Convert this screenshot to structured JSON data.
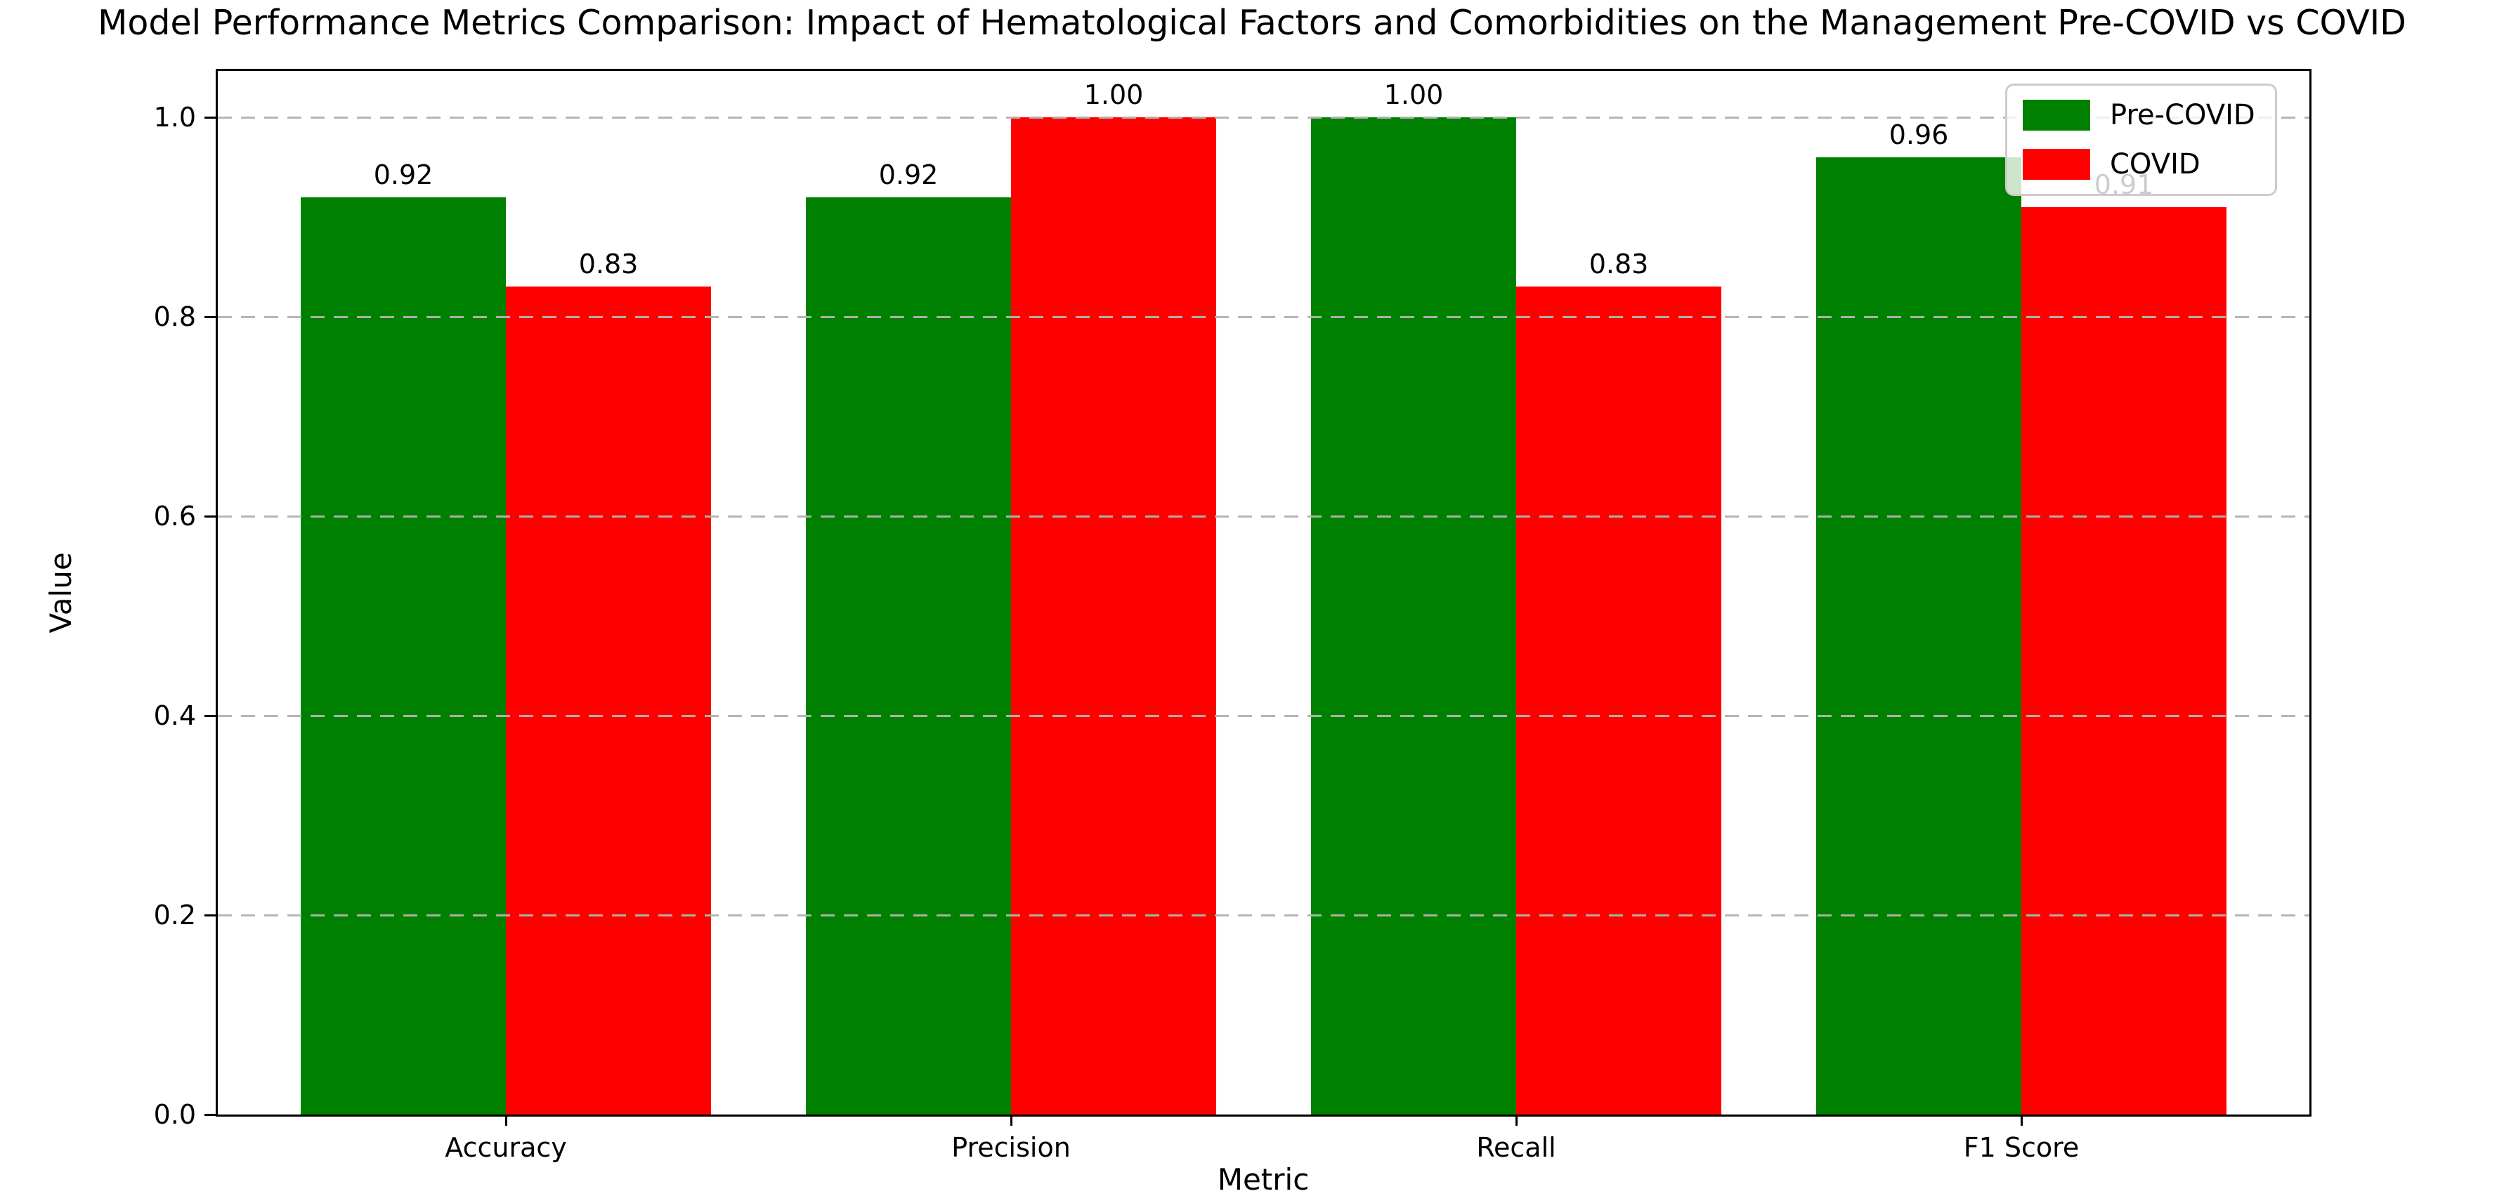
{
  "figure": {
    "title": "Model Performance Metrics Comparison: Impact of Hematological Factors and Comorbidities on the Management Pre-COVID vs COVID"
  },
  "chart_data": {
    "type": "bar",
    "title": "Model Performance Metrics Comparison: Impact of Hematological Factors and Comorbidities on the Management Pre-COVID vs COVID",
    "xlabel": "Metric",
    "ylabel": "Value",
    "categories": [
      "Accuracy",
      "Precision",
      "Recall",
      "F1 Score"
    ],
    "series": [
      {
        "name": "Pre-COVID",
        "color": "#008000",
        "values": [
          0.92,
          0.92,
          1.0,
          0.96
        ],
        "labels": [
          "0.92",
          "0.92",
          "1.00",
          "0.96"
        ]
      },
      {
        "name": "COVID",
        "color": "#ff0000",
        "values": [
          0.83,
          1.0,
          0.83,
          0.91
        ],
        "labels": [
          "0.83",
          "1.00",
          "0.83",
          "0.91"
        ]
      }
    ],
    "ylim": [
      0.0,
      1.05
    ],
    "yticks": [
      0.0,
      0.2,
      0.4,
      0.6,
      0.8,
      1.0
    ],
    "ytick_labels": [
      "0.0",
      "0.2",
      "0.4",
      "0.6",
      "0.8",
      "1.0"
    ],
    "grid": "horizontal-dashed-above-bars",
    "grid_color": "#b2b2b2",
    "legend_position": "upper right",
    "legend_frame_alpha": 0.8
  }
}
